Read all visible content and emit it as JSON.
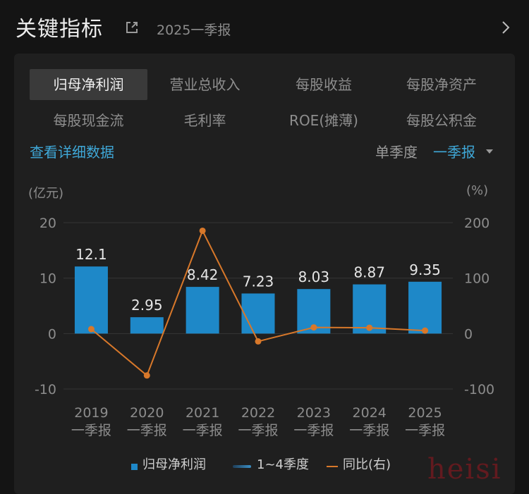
{
  "header": {
    "title": "关键指标",
    "period": "2025一季报"
  },
  "tabs": [
    {
      "label": "归母净利润",
      "active": true
    },
    {
      "label": "营业总收入",
      "active": false
    },
    {
      "label": "每股收益",
      "active": false
    },
    {
      "label": "每股净资产",
      "active": false
    },
    {
      "label": "每股现金流",
      "active": false
    },
    {
      "label": "毛利率",
      "active": false
    },
    {
      "label": "ROE(摊薄)",
      "active": false
    },
    {
      "label": "每股公积金",
      "active": false
    }
  ],
  "controls": {
    "detail_link": "查看详细数据",
    "quarter_label": "单季度",
    "quarter_select": "一季报"
  },
  "axis_units": {
    "left": "(亿元)",
    "right": "(%)"
  },
  "legend": {
    "bar": "归母净利润",
    "range": "1~4季度",
    "line": "同比(右)"
  },
  "watermark": "heisi",
  "colors": {
    "bar": "#1e88c8",
    "line": "#d8782a",
    "accent": "#3fa8d8"
  },
  "chart_data": {
    "type": "bar",
    "categories": [
      [
        "2019",
        "一季报"
      ],
      [
        "2020",
        "一季报"
      ],
      [
        "2021",
        "一季报"
      ],
      [
        "2022",
        "一季报"
      ],
      [
        "2023",
        "一季报"
      ],
      [
        "2024",
        "一季报"
      ],
      [
        "2025",
        "一季报"
      ]
    ],
    "series": [
      {
        "name": "归母净利润",
        "type": "bar",
        "axis": "left",
        "values": [
          12.1,
          2.95,
          8.42,
          7.23,
          8.03,
          8.87,
          9.35
        ],
        "labels": [
          "12.1",
          "2.95",
          "8.42",
          "7.23",
          "8.03",
          "8.87",
          "9.35"
        ]
      },
      {
        "name": "同比(右)",
        "type": "line",
        "axis": "right",
        "values": [
          8,
          -75.6,
          185.4,
          -14.1,
          11.1,
          10.5,
          5.4
        ]
      }
    ],
    "y_left": {
      "range": [
        -10,
        20
      ],
      "ticks": [
        "-10",
        "0",
        "10",
        "20"
      ]
    },
    "y_right": {
      "range": [
        -100,
        200
      ],
      "ticks": [
        "-100",
        "0",
        "100",
        "200"
      ]
    },
    "grid": true,
    "legend_position": "bottom"
  }
}
